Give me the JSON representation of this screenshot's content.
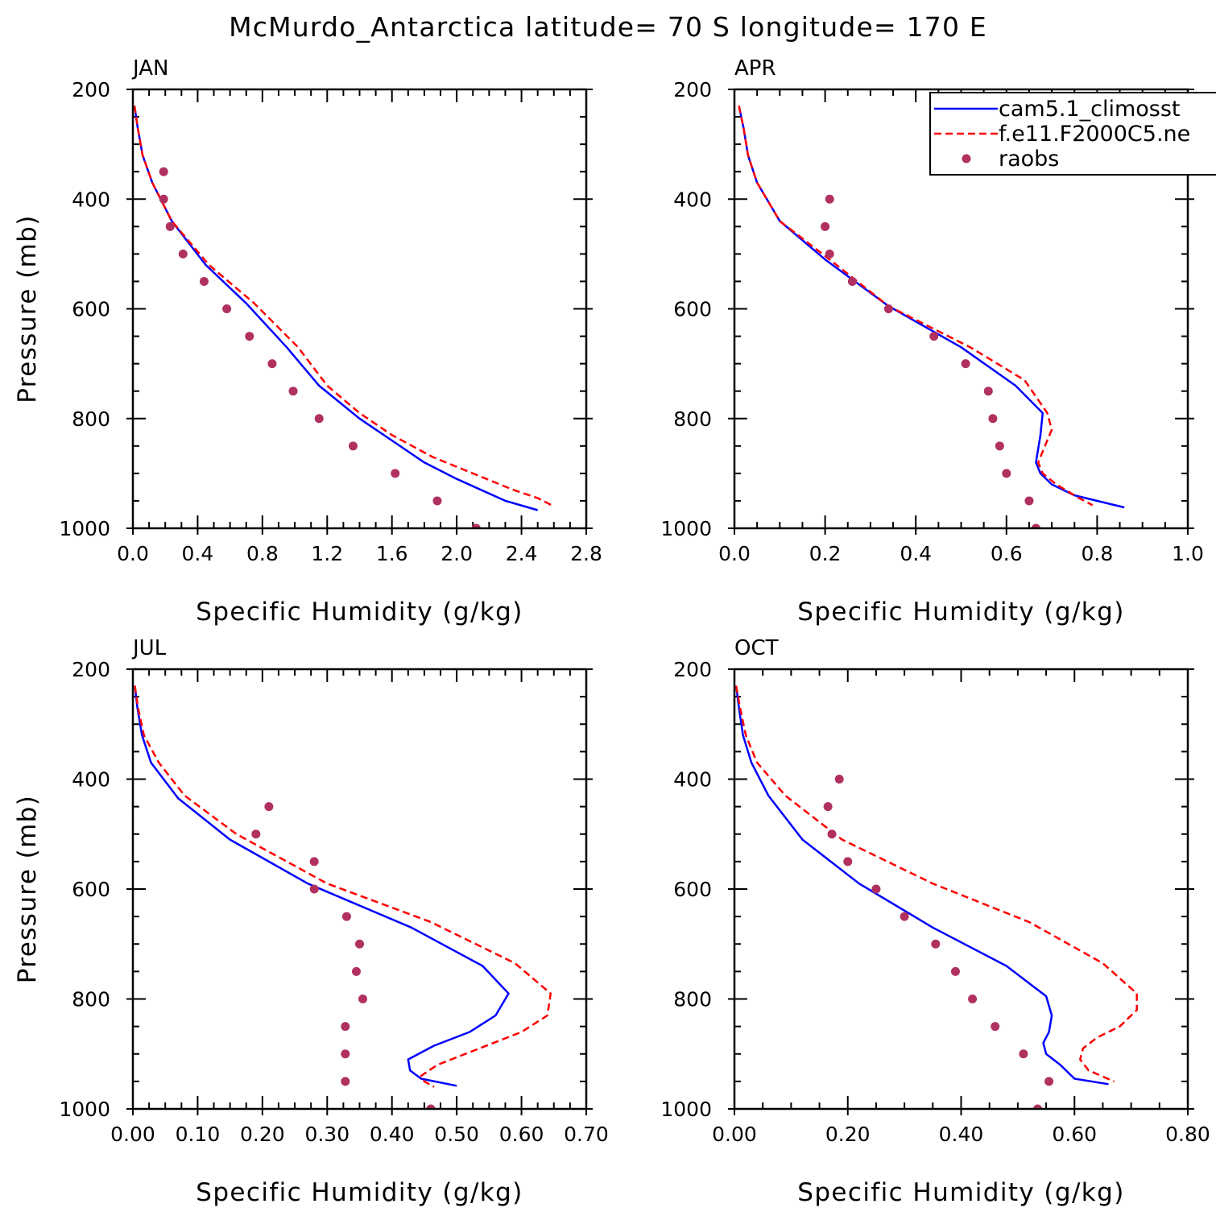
{
  "page_title": "McMurdo_Antarctica  latitude= 70 S longitude= 170 E",
  "colors": {
    "cam": "#0000ff",
    "f_e11": "#ff0000",
    "raobs": "#b03060",
    "axes": "#000000",
    "background": "#ffffff"
  },
  "legend": {
    "items": [
      {
        "label": "cam5.1_climosst",
        "style": "solid",
        "color": "#0000ff"
      },
      {
        "label": "f.e11.F2000C5.ne",
        "style": "dashed",
        "color": "#ff0000"
      },
      {
        "label": "raobs",
        "style": "marker",
        "color": "#b03060"
      }
    ]
  },
  "chart_data": [
    {
      "type": "line",
      "title": "JAN",
      "xlabel": "Specific Humidity (g/kg)",
      "ylabel": "Pressure (mb)",
      "xlim": [
        0,
        2.8
      ],
      "ylim": [
        1000,
        200
      ],
      "xticks": [
        "0.0",
        "0.4",
        "0.8",
        "1.2",
        "1.6",
        "2.0",
        "2.4",
        "2.8"
      ],
      "yticks": [
        "200",
        "400",
        "600",
        "800",
        "1000"
      ],
      "series": [
        {
          "name": "cam5.1_climosst",
          "style": "solid",
          "points": [
            [
              0.01,
              230
            ],
            [
              0.03,
              270
            ],
            [
              0.06,
              320
            ],
            [
              0.12,
              370
            ],
            [
              0.24,
              440
            ],
            [
              0.45,
              520
            ],
            [
              0.7,
              590
            ],
            [
              0.95,
              670
            ],
            [
              1.15,
              740
            ],
            [
              1.4,
              800
            ],
            [
              1.6,
              840
            ],
            [
              1.8,
              880
            ],
            [
              2.0,
              910
            ],
            [
              2.15,
              930
            ],
            [
              2.3,
              950
            ],
            [
              2.5,
              967
            ]
          ]
        },
        {
          "name": "f.e11.F2000C5.ne",
          "style": "dashed",
          "points": [
            [
              0.01,
              230
            ],
            [
              0.03,
              270
            ],
            [
              0.06,
              320
            ],
            [
              0.12,
              370
            ],
            [
              0.24,
              440
            ],
            [
              0.47,
              520
            ],
            [
              0.75,
              590
            ],
            [
              1.02,
              670
            ],
            [
              1.2,
              740
            ],
            [
              1.4,
              790
            ],
            [
              1.6,
              830
            ],
            [
              1.85,
              870
            ],
            [
              2.1,
              900
            ],
            [
              2.35,
              930
            ],
            [
              2.5,
              945
            ],
            [
              2.6,
              960
            ]
          ]
        },
        {
          "name": "raobs",
          "style": "marker",
          "points": [
            [
              0.19,
              350
            ],
            [
              0.19,
              400
            ],
            [
              0.23,
              450
            ],
            [
              0.31,
              500
            ],
            [
              0.44,
              550
            ],
            [
              0.58,
              600
            ],
            [
              0.72,
              650
            ],
            [
              0.86,
              700
            ],
            [
              0.99,
              750
            ],
            [
              1.15,
              800
            ],
            [
              1.36,
              850
            ],
            [
              1.62,
              900
            ],
            [
              1.88,
              950
            ],
            [
              2.12,
              1000
            ]
          ]
        }
      ]
    },
    {
      "type": "line",
      "title": "APR",
      "xlabel": "Specific Humidity (g/kg)",
      "ylabel": "Pressure (mb)",
      "xlim": [
        0,
        1.0
      ],
      "ylim": [
        1000,
        200
      ],
      "xticks": [
        "0.0",
        "0.2",
        "0.4",
        "0.6",
        "0.8",
        "1.0"
      ],
      "yticks": [
        "200",
        "400",
        "600",
        "800",
        "1000"
      ],
      "series": [
        {
          "name": "cam5.1_climosst",
          "style": "solid",
          "points": [
            [
              0.01,
              230
            ],
            [
              0.02,
              270
            ],
            [
              0.03,
              320
            ],
            [
              0.05,
              370
            ],
            [
              0.1,
              440
            ],
            [
              0.2,
              510
            ],
            [
              0.34,
              595
            ],
            [
              0.5,
              670
            ],
            [
              0.62,
              740
            ],
            [
              0.68,
              790
            ],
            [
              0.675,
              830
            ],
            [
              0.665,
              880
            ],
            [
              0.675,
              900
            ],
            [
              0.7,
              920
            ],
            [
              0.75,
              940
            ],
            [
              0.86,
              962
            ]
          ]
        },
        {
          "name": "f.e11.F2000C5.ne",
          "style": "dashed",
          "points": [
            [
              0.01,
              230
            ],
            [
              0.02,
              270
            ],
            [
              0.03,
              320
            ],
            [
              0.05,
              370
            ],
            [
              0.1,
              440
            ],
            [
              0.21,
              510
            ],
            [
              0.34,
              595
            ],
            [
              0.52,
              670
            ],
            [
              0.64,
              730
            ],
            [
              0.69,
              790
            ],
            [
              0.7,
              820
            ],
            [
              0.68,
              860
            ],
            [
              0.67,
              880
            ],
            [
              0.68,
              900
            ],
            [
              0.71,
              920
            ],
            [
              0.76,
              945
            ],
            [
              0.79,
              958
            ]
          ]
        },
        {
          "name": "raobs",
          "style": "marker",
          "points": [
            [
              0.21,
              400
            ],
            [
              0.2,
              450
            ],
            [
              0.21,
              500
            ],
            [
              0.26,
              550
            ],
            [
              0.34,
              600
            ],
            [
              0.44,
              650
            ],
            [
              0.51,
              700
            ],
            [
              0.56,
              750
            ],
            [
              0.57,
              800
            ],
            [
              0.585,
              850
            ],
            [
              0.6,
              900
            ],
            [
              0.65,
              950
            ],
            [
              0.665,
              1000
            ]
          ]
        }
      ]
    },
    {
      "type": "line",
      "title": "JUL",
      "xlabel": "Specific Humidity (g/kg)",
      "ylabel": "Pressure (mb)",
      "xlim": [
        0,
        0.7
      ],
      "ylim": [
        1000,
        200
      ],
      "xticks": [
        "0.00",
        "0.10",
        "0.20",
        "0.30",
        "0.40",
        "0.50",
        "0.60",
        "0.70"
      ],
      "yticks": [
        "200",
        "400",
        "600",
        "800",
        "1000"
      ],
      "series": [
        {
          "name": "cam5.1_climosst",
          "style": "solid",
          "points": [
            [
              0.003,
              230
            ],
            [
              0.007,
              270
            ],
            [
              0.014,
              320
            ],
            [
              0.028,
              370
            ],
            [
              0.07,
              435
            ],
            [
              0.15,
              510
            ],
            [
              0.27,
              590
            ],
            [
              0.43,
              670
            ],
            [
              0.54,
              740
            ],
            [
              0.58,
              790
            ],
            [
              0.56,
              830
            ],
            [
              0.52,
              860
            ],
            [
              0.465,
              885
            ],
            [
              0.425,
              910
            ],
            [
              0.428,
              930
            ],
            [
              0.445,
              945
            ],
            [
              0.5,
              958
            ]
          ]
        },
        {
          "name": "f.e11.F2000C5.ne",
          "style": "dashed",
          "points": [
            [
              0.003,
              230
            ],
            [
              0.008,
              270
            ],
            [
              0.017,
              320
            ],
            [
              0.04,
              370
            ],
            [
              0.08,
              430
            ],
            [
              0.16,
              500
            ],
            [
              0.3,
              590
            ],
            [
              0.46,
              660
            ],
            [
              0.59,
              735
            ],
            [
              0.645,
              790
            ],
            [
              0.64,
              830
            ],
            [
              0.6,
              860
            ],
            [
              0.535,
              890
            ],
            [
              0.47,
              920
            ],
            [
              0.445,
              940
            ],
            [
              0.45,
              950
            ],
            [
              0.465,
              960
            ]
          ]
        },
        {
          "name": "raobs",
          "style": "marker",
          "points": [
            [
              0.21,
              450
            ],
            [
              0.19,
              500
            ],
            [
              0.28,
              550
            ],
            [
              0.28,
              600
            ],
            [
              0.33,
              650
            ],
            [
              0.35,
              700
            ],
            [
              0.345,
              750
            ],
            [
              0.355,
              800
            ],
            [
              0.328,
              850
            ],
            [
              0.328,
              900
            ],
            [
              0.328,
              950
            ],
            [
              0.46,
              1000
            ]
          ]
        }
      ]
    },
    {
      "type": "line",
      "title": "OCT",
      "xlabel": "Specific Humidity (g/kg)",
      "ylabel": "Pressure (mb)",
      "xlim": [
        0,
        0.8
      ],
      "ylim": [
        1000,
        200
      ],
      "xticks": [
        "0.00",
        "0.20",
        "0.40",
        "0.60",
        "0.80"
      ],
      "yticks": [
        "200",
        "400",
        "600",
        "800",
        "1000"
      ],
      "series": [
        {
          "name": "cam5.1_climosst",
          "style": "solid",
          "points": [
            [
              0.003,
              230
            ],
            [
              0.008,
              270
            ],
            [
              0.015,
              320
            ],
            [
              0.03,
              370
            ],
            [
              0.06,
              430
            ],
            [
              0.12,
              510
            ],
            [
              0.22,
              590
            ],
            [
              0.35,
              670
            ],
            [
              0.48,
              740
            ],
            [
              0.55,
              795
            ],
            [
              0.56,
              830
            ],
            [
              0.555,
              860
            ],
            [
              0.545,
              880
            ],
            [
              0.55,
              900
            ],
            [
              0.575,
              920
            ],
            [
              0.6,
              945
            ],
            [
              0.66,
              955
            ]
          ]
        },
        {
          "name": "f.e11.F2000C5.ne",
          "style": "dashed",
          "points": [
            [
              0.003,
              230
            ],
            [
              0.01,
              270
            ],
            [
              0.02,
              320
            ],
            [
              0.04,
              370
            ],
            [
              0.09,
              430
            ],
            [
              0.19,
              510
            ],
            [
              0.35,
              590
            ],
            [
              0.52,
              660
            ],
            [
              0.65,
              735
            ],
            [
              0.71,
              790
            ],
            [
              0.71,
              820
            ],
            [
              0.68,
              850
            ],
            [
              0.64,
              870
            ],
            [
              0.615,
              890
            ],
            [
              0.61,
              910
            ],
            [
              0.625,
              930
            ],
            [
              0.67,
              950
            ]
          ]
        },
        {
          "name": "raobs",
          "style": "marker",
          "points": [
            [
              0.185,
              400
            ],
            [
              0.165,
              450
            ],
            [
              0.172,
              500
            ],
            [
              0.2,
              550
            ],
            [
              0.25,
              600
            ],
            [
              0.3,
              650
            ],
            [
              0.355,
              700
            ],
            [
              0.39,
              750
            ],
            [
              0.42,
              800
            ],
            [
              0.46,
              850
            ],
            [
              0.51,
              900
            ],
            [
              0.555,
              950
            ],
            [
              0.535,
              1000
            ]
          ]
        }
      ]
    }
  ]
}
